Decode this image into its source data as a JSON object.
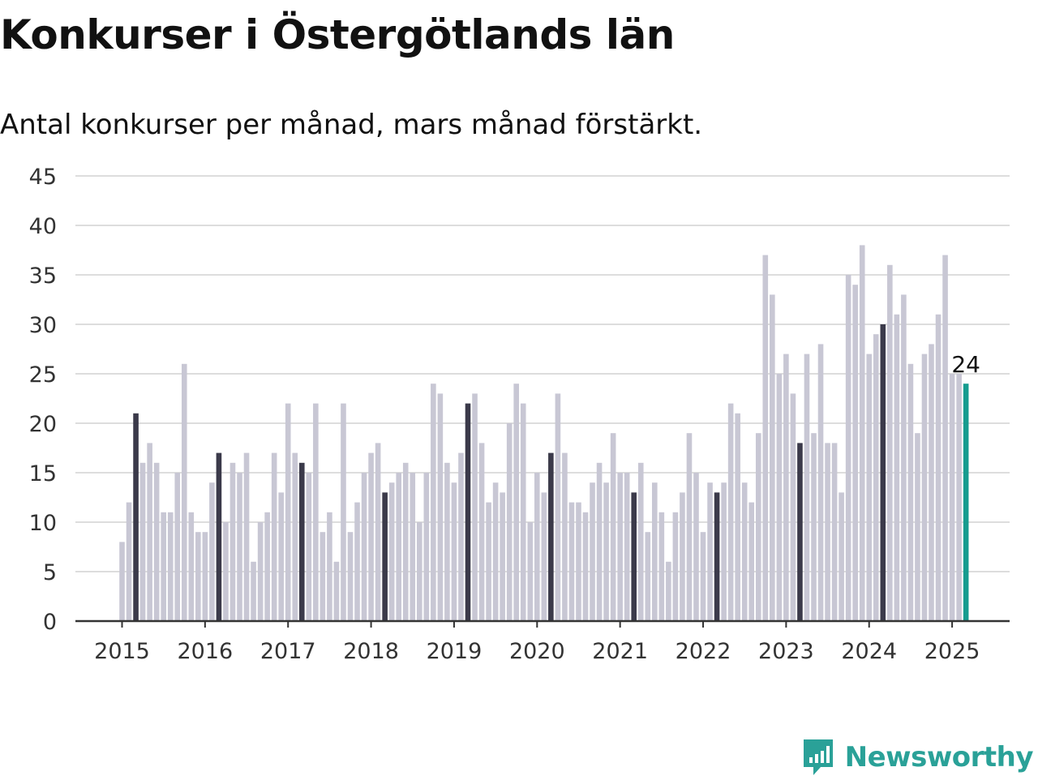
{
  "title": "Konkurser i Östergötlands län",
  "subtitle": "Antal konkurser per månad, mars månad förstärkt.",
  "brand": {
    "name": "Newsworthy",
    "color": "#2aa198"
  },
  "colors": {
    "regular_bar": "#c8c7d4",
    "highlight_bar": "#3b3a4a",
    "latest_bar": "#169c8f",
    "grid": "#dddddd",
    "axis": "#333333",
    "text": "#111111"
  },
  "chart_data": {
    "type": "bar",
    "title": "Konkurser i Östergötlands län",
    "subtitle": "Antal konkurser per månad, mars månad förstärkt.",
    "xlabel": "",
    "ylabel": "",
    "ylim": [
      0,
      45
    ],
    "yticks": [
      0,
      5,
      10,
      15,
      20,
      25,
      30,
      35,
      40,
      45
    ],
    "xticks": [
      "2015",
      "2016",
      "2017",
      "2018",
      "2019",
      "2020",
      "2021",
      "2022",
      "2023",
      "2024",
      "2025"
    ],
    "grid": true,
    "start": "2015-01",
    "highlight_month": "mars",
    "values": [
      8,
      12,
      21,
      16,
      18,
      16,
      11,
      11,
      15,
      26,
      11,
      9,
      9,
      14,
      17,
      10,
      16,
      15,
      17,
      6,
      10,
      11,
      17,
      13,
      22,
      17,
      16,
      15,
      22,
      9,
      11,
      6,
      22,
      9,
      12,
      15,
      17,
      18,
      13,
      14,
      15,
      16,
      15,
      10,
      15,
      24,
      23,
      16,
      14,
      17,
      22,
      23,
      18,
      12,
      14,
      13,
      20,
      24,
      22,
      10,
      15,
      13,
      17,
      23,
      17,
      12,
      12,
      11,
      14,
      16,
      14,
      19,
      15,
      15,
      13,
      16,
      9,
      14,
      11,
      6,
      11,
      13,
      19,
      15,
      9,
      14,
      13,
      14,
      22,
      21,
      14,
      12,
      19,
      37,
      33,
      25,
      27,
      23,
      18,
      27,
      19,
      28,
      18,
      18,
      13,
      35,
      34,
      38,
      27,
      29,
      30,
      36,
      31,
      33,
      26,
      19,
      27,
      28,
      31,
      37,
      25,
      25,
      24
    ],
    "last_value_label": "24"
  }
}
